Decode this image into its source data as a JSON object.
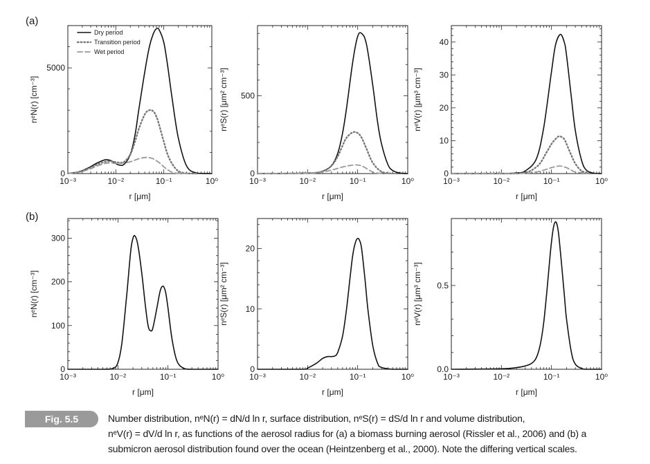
{
  "panel_labels": {
    "a": "(a)",
    "b": "(b)"
  },
  "figure_tag": "Fig. 5.5",
  "caption_lines": [
    "Number distribution, nᵉN(r) = dN/d ln r, surface distribution, nᵉS(r) = dS/d ln r and volume distribution,",
    "nᵉV(r) = dV/d ln r, as functions of the aerosol radius for (a) a biomass burning aerosol (Rissler et al., 2006) and (b) a",
    "submicron aerosol distribution found over the ocean (Heintzenberg et al., 2000). Note the differing vertical scales."
  ],
  "legend": {
    "entries": [
      {
        "label": "Dry period",
        "style": "solid",
        "color": "#111111"
      },
      {
        "label": "Transition period",
        "style": "dotted",
        "color": "#777777"
      },
      {
        "label": "Wet period",
        "style": "dashed",
        "color": "#999999"
      }
    ]
  },
  "chart_data": [
    {
      "id": "a-number",
      "type": "line",
      "xscale": "log",
      "xlim": [
        0.001,
        1
      ],
      "ylim": [
        0,
        7000
      ],
      "xticks": [
        0.001,
        0.01,
        0.1,
        1
      ],
      "xtick_labels": [
        "10⁻³",
        "10⁻²",
        "10⁻¹",
        "10⁰"
      ],
      "yticks": [
        0,
        5000
      ],
      "ytick_labels": [
        "0",
        "5000"
      ],
      "xlabel": "r [μm]",
      "ylabel": "nᵉN(r) [cm⁻³]",
      "series": [
        {
          "name": "Dry period",
          "style": "solid",
          "color": "#111111",
          "x": [
            0.001,
            0.0015,
            0.002,
            0.003,
            0.004,
            0.006,
            0.008,
            0.01,
            0.012,
            0.015,
            0.02,
            0.025,
            0.03,
            0.04,
            0.05,
            0.06,
            0.07,
            0.08,
            0.1,
            0.12,
            0.15,
            0.2,
            0.3,
            0.5,
            1
          ],
          "y": [
            10,
            60,
            140,
            330,
            490,
            650,
            610,
            470,
            400,
            440,
            900,
            1800,
            3000,
            4800,
            6000,
            6600,
            6850,
            6800,
            6200,
            5100,
            3500,
            1700,
            350,
            20,
            0
          ]
        },
        {
          "name": "Transition period",
          "style": "dotted",
          "color": "#777777",
          "x": [
            0.001,
            0.0015,
            0.002,
            0.003,
            0.004,
            0.006,
            0.008,
            0.01,
            0.012,
            0.015,
            0.02,
            0.025,
            0.03,
            0.04,
            0.05,
            0.06,
            0.07,
            0.08,
            0.1,
            0.12,
            0.15,
            0.2,
            0.3,
            0.5
          ],
          "y": [
            5,
            50,
            120,
            280,
            420,
            560,
            580,
            540,
            520,
            560,
            900,
            1500,
            2100,
            2800,
            3000,
            2950,
            2700,
            2300,
            1500,
            900,
            450,
            120,
            10,
            0
          ]
        },
        {
          "name": "Wet period",
          "style": "dashed",
          "color": "#999999",
          "x": [
            0.001,
            0.0015,
            0.002,
            0.003,
            0.004,
            0.006,
            0.008,
            0.01,
            0.015,
            0.02,
            0.03,
            0.04,
            0.05,
            0.06,
            0.08,
            0.1,
            0.12,
            0.15,
            0.2,
            0.3
          ],
          "y": [
            5,
            40,
            100,
            230,
            350,
            480,
            500,
            480,
            500,
            560,
            700,
            760,
            750,
            700,
            520,
            320,
            180,
            60,
            10,
            0
          ]
        }
      ]
    },
    {
      "id": "a-surface",
      "type": "line",
      "xscale": "log",
      "xlim": [
        0.001,
        1
      ],
      "ylim": [
        0,
        950
      ],
      "xticks": [
        0.001,
        0.01,
        0.1,
        1
      ],
      "xtick_labels": [
        "10⁻³",
        "10⁻²",
        "10⁻¹",
        "10⁰"
      ],
      "yticks": [
        0,
        500
      ],
      "ytick_labels": [
        "0",
        "500"
      ],
      "xlabel": "r [μm]",
      "ylabel": "nᵉS(r) [μm² cm⁻³]",
      "series": [
        {
          "name": "Dry period",
          "style": "solid",
          "color": "#111111",
          "x": [
            0.001,
            0.005,
            0.01,
            0.015,
            0.02,
            0.03,
            0.04,
            0.05,
            0.06,
            0.08,
            0.1,
            0.12,
            0.15,
            0.2,
            0.25,
            0.3,
            0.4,
            0.5,
            0.7,
            1
          ],
          "y": [
            0,
            1,
            3,
            6,
            15,
            50,
            130,
            260,
            420,
            720,
            880,
            900,
            830,
            570,
            330,
            190,
            60,
            20,
            3,
            0
          ]
        },
        {
          "name": "Transition period",
          "style": "dotted",
          "color": "#777777",
          "x": [
            0.001,
            0.01,
            0.02,
            0.03,
            0.04,
            0.05,
            0.06,
            0.08,
            0.1,
            0.12,
            0.15,
            0.2,
            0.3,
            0.5
          ],
          "y": [
            0,
            2,
            15,
            50,
            110,
            180,
            230,
            265,
            260,
            230,
            160,
            70,
            12,
            0
          ]
        },
        {
          "name": "Wet period",
          "style": "dashed",
          "color": "#999999",
          "x": [
            0.001,
            0.01,
            0.02,
            0.03,
            0.05,
            0.07,
            0.1,
            0.13,
            0.2,
            0.3
          ],
          "y": [
            0,
            2,
            10,
            22,
            42,
            52,
            55,
            45,
            10,
            0
          ]
        }
      ]
    },
    {
      "id": "a-volume",
      "type": "line",
      "xscale": "log",
      "xlim": [
        0.001,
        1
      ],
      "ylim": [
        0,
        45
      ],
      "xticks": [
        0.001,
        0.01,
        0.1,
        1
      ],
      "xtick_labels": [
        "10⁻³",
        "10⁻²",
        "10⁻¹",
        "10⁰"
      ],
      "yticks": [
        0,
        10,
        20,
        30,
        40
      ],
      "ytick_labels": [
        "0",
        "10",
        "20",
        "30",
        "40"
      ],
      "xlabel": "r [μm]",
      "ylabel": "nᵉV(r) [μm³ cm⁻³]",
      "series": [
        {
          "name": "Dry period",
          "style": "solid",
          "color": "#111111",
          "x": [
            0.001,
            0.01,
            0.02,
            0.03,
            0.05,
            0.07,
            0.1,
            0.12,
            0.15,
            0.18,
            0.2,
            0.25,
            0.3,
            0.4,
            0.5,
            0.7,
            1
          ],
          "y": [
            0,
            0,
            0.2,
            0.8,
            4.5,
            14,
            31,
            39,
            42.3,
            40,
            36,
            23,
            13,
            4,
            1,
            0.1,
            0
          ]
        },
        {
          "name": "Transition period",
          "style": "dotted",
          "color": "#777777",
          "x": [
            0.001,
            0.02,
            0.05,
            0.08,
            0.1,
            0.13,
            0.15,
            0.18,
            0.2,
            0.25,
            0.3,
            0.4,
            0.6
          ],
          "y": [
            0,
            0,
            2,
            6.5,
            9,
            11,
            11.3,
            10.5,
            9,
            5.5,
            3,
            0.8,
            0
          ]
        },
        {
          "name": "Wet period",
          "style": "dashed",
          "color": "#999999",
          "x": [
            0.001,
            0.02,
            0.05,
            0.08,
            0.1,
            0.13,
            0.15,
            0.2,
            0.25,
            0.3,
            0.5
          ],
          "y": [
            0,
            0,
            0.5,
            1.3,
            1.8,
            2.2,
            2.3,
            1.8,
            1.0,
            0.5,
            0
          ]
        }
      ]
    },
    {
      "id": "b-number",
      "type": "line",
      "xscale": "log",
      "xlim": [
        0.001,
        1
      ],
      "ylim": [
        0,
        345
      ],
      "xticks": [
        0.001,
        0.01,
        0.1,
        1
      ],
      "xtick_labels": [
        "10⁻³",
        "10⁻²",
        "10⁻¹",
        "10⁰"
      ],
      "yticks": [
        0,
        100,
        200,
        300
      ],
      "ytick_labels": [
        "0",
        "100",
        "200",
        "300"
      ],
      "xlabel": "r [μm]",
      "ylabel": "nᵉN(r) [cm⁻³]",
      "series": [
        {
          "style": "solid",
          "color": "#111111",
          "x": [
            0.001,
            0.005,
            0.008,
            0.01,
            0.012,
            0.015,
            0.018,
            0.02,
            0.022,
            0.025,
            0.03,
            0.035,
            0.04,
            0.045,
            0.05,
            0.06,
            0.07,
            0.08,
            0.09,
            0.1,
            0.12,
            0.15,
            0.2,
            0.3,
            1
          ],
          "y": [
            0,
            0,
            2,
            15,
            60,
            170,
            270,
            300,
            305,
            285,
            220,
            150,
            100,
            88,
            95,
            140,
            180,
            190,
            175,
            140,
            70,
            20,
            3,
            0,
            0
          ]
        }
      ]
    },
    {
      "id": "b-surface",
      "type": "line",
      "xscale": "log",
      "xlim": [
        0.001,
        1
      ],
      "ylim": [
        0,
        25
      ],
      "xticks": [
        0.001,
        0.01,
        0.1,
        1
      ],
      "xtick_labels": [
        "10⁻³",
        "10⁻²",
        "10⁻¹",
        "10⁰"
      ],
      "yticks": [
        0,
        10,
        20
      ],
      "ytick_labels": [
        "0",
        "10",
        "20"
      ],
      "xlabel": "r [μm]",
      "ylabel": "nᵉS(r) [μm² cm⁻³]",
      "series": [
        {
          "style": "solid",
          "color": "#111111",
          "x": [
            0.001,
            0.008,
            0.01,
            0.015,
            0.02,
            0.025,
            0.03,
            0.035,
            0.04,
            0.05,
            0.06,
            0.07,
            0.08,
            0.09,
            0.1,
            0.11,
            0.12,
            0.14,
            0.16,
            0.2,
            0.25,
            0.3,
            0.5,
            1
          ],
          "y": [
            0,
            0,
            0.2,
            1.0,
            1.8,
            2.1,
            2.1,
            2.2,
            2.8,
            5.5,
            10,
            15,
            19,
            21,
            21.7,
            21.3,
            20,
            15,
            10,
            4,
            1,
            0.3,
            0,
            0
          ]
        }
      ]
    },
    {
      "id": "b-volume",
      "type": "line",
      "xscale": "log",
      "xlim": [
        0.001,
        1
      ],
      "ylim": [
        0,
        0.9
      ],
      "xticks": [
        0.001,
        0.01,
        0.1,
        1
      ],
      "xtick_labels": [
        "10⁻³",
        "10⁻²",
        "10⁻¹",
        "10⁰"
      ],
      "yticks": [
        0,
        0.5
      ],
      "ytick_labels": [
        "0.0",
        "0.5"
      ],
      "xlabel": "r [μm]",
      "ylabel": "nᵉV(r) [μm³ cm⁻³]",
      "series": [
        {
          "style": "solid",
          "color": "#111111",
          "x": [
            0.001,
            0.01,
            0.02,
            0.03,
            0.04,
            0.05,
            0.06,
            0.07,
            0.08,
            0.09,
            0.1,
            0.11,
            0.12,
            0.13,
            0.14,
            0.16,
            0.18,
            0.2,
            0.25,
            0.3,
            0.4,
            0.5,
            1
          ],
          "y": [
            0,
            0.003,
            0.01,
            0.02,
            0.035,
            0.07,
            0.15,
            0.28,
            0.45,
            0.62,
            0.76,
            0.85,
            0.88,
            0.86,
            0.8,
            0.62,
            0.45,
            0.3,
            0.1,
            0.03,
            0.005,
            0,
            0
          ]
        }
      ]
    }
  ]
}
